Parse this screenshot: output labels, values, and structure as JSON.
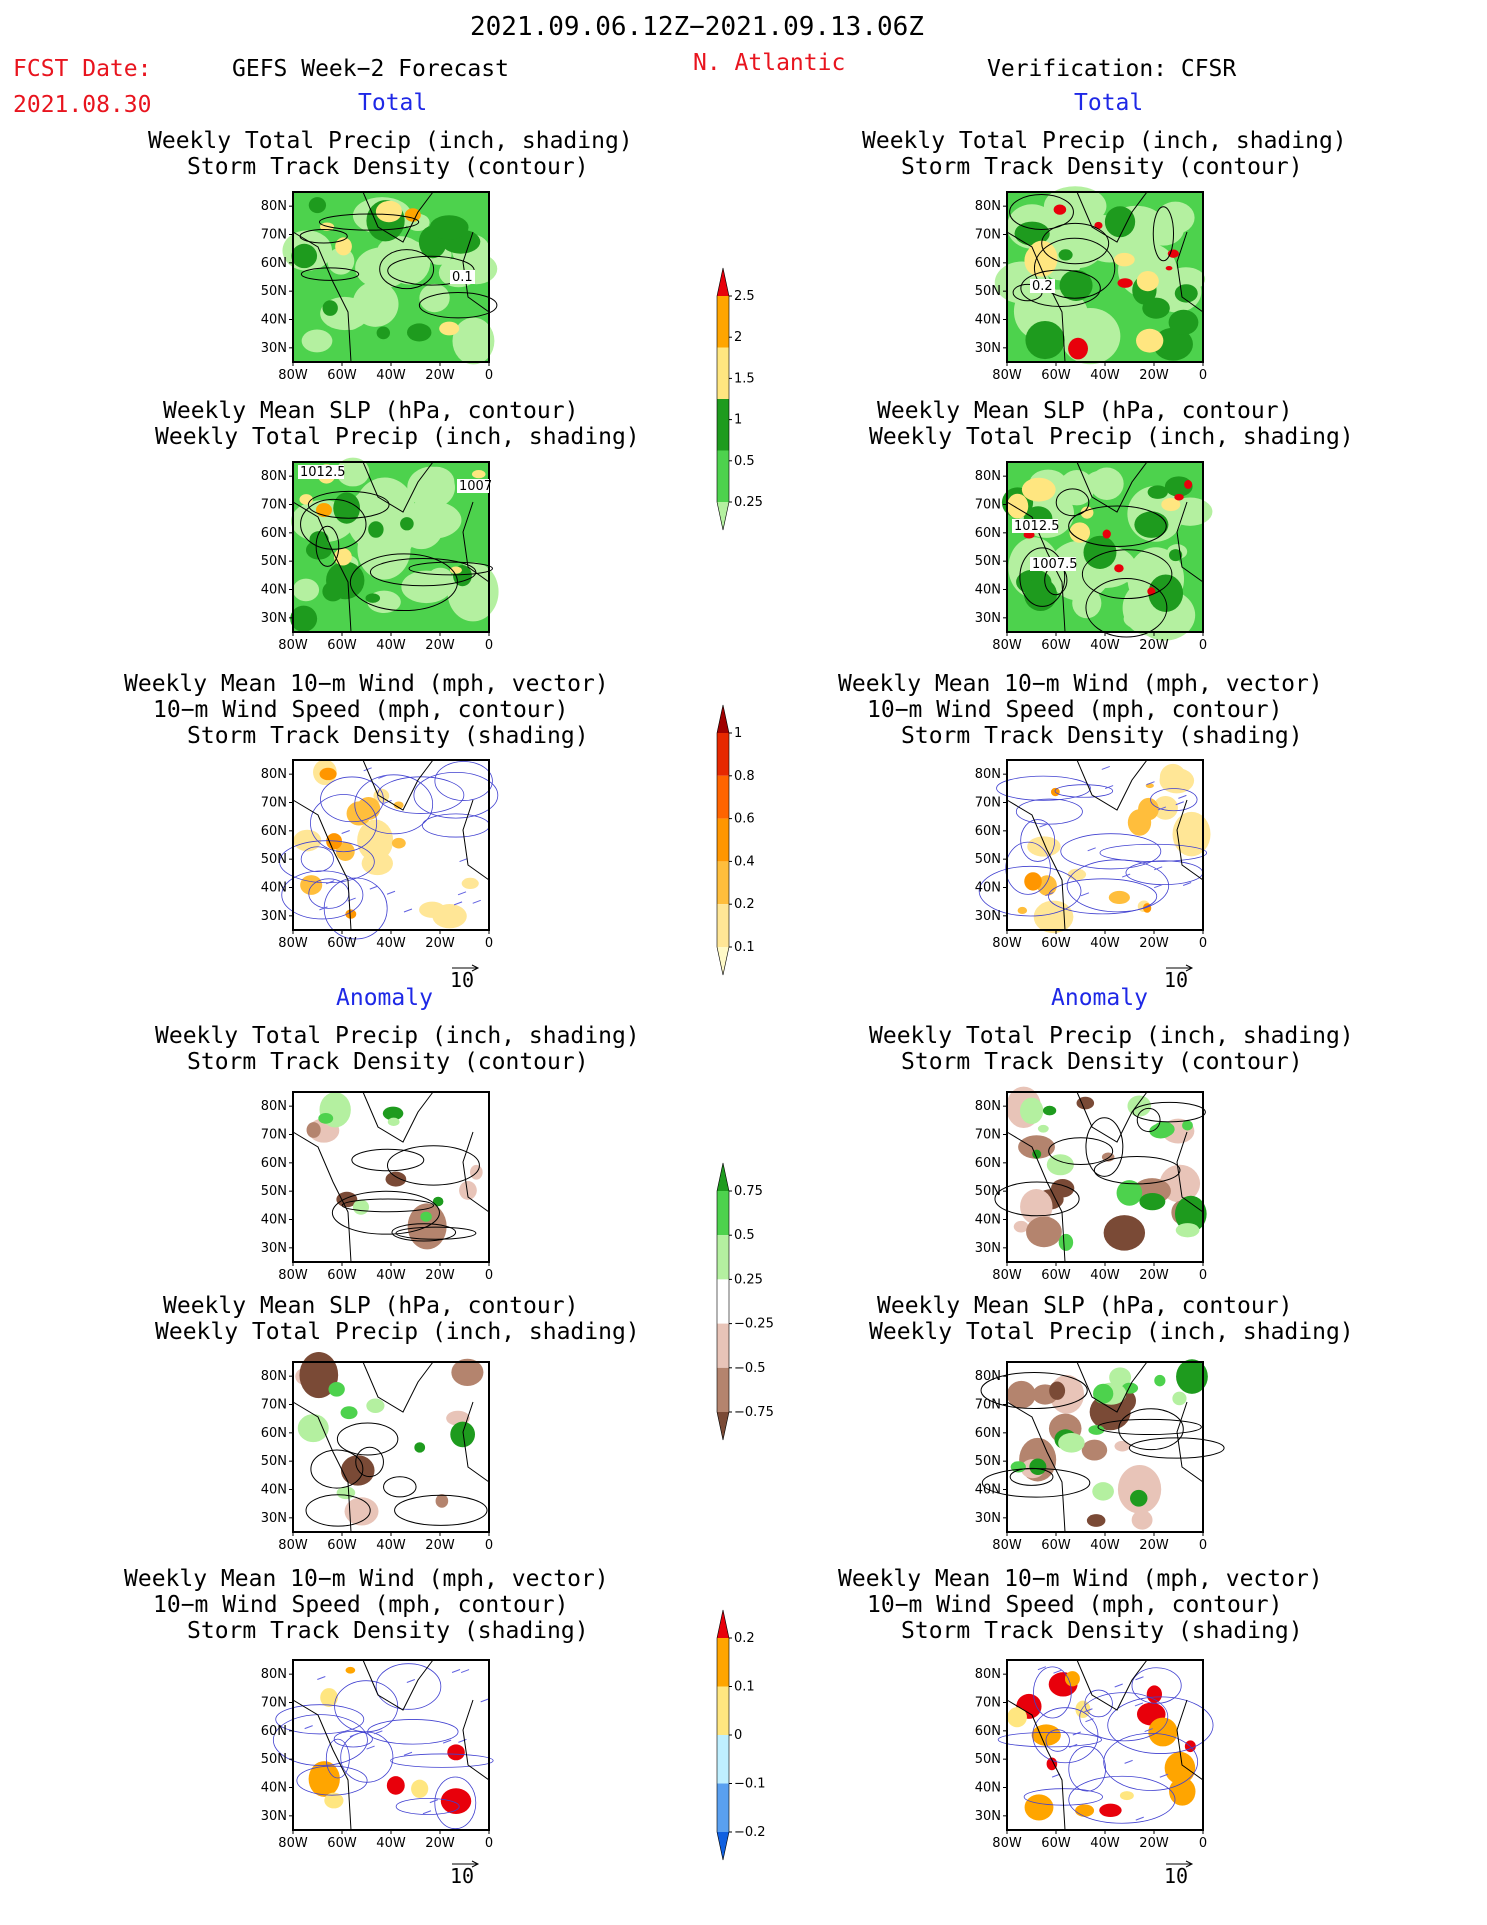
{
  "header": {
    "period": "2021.09.06.12Z−2021.09.13.06Z",
    "fcst_label": "FCST Date:",
    "fcst_date": "2021.08.30",
    "region": "N. Atlantic",
    "left_title": "GEFS Week−2 Forecast",
    "right_title": "Verification: CFSR"
  },
  "sections": {
    "total": "Total",
    "anomaly": "Anomaly"
  },
  "panel_titles": {
    "precip_storm": [
      "Weekly Total Precip (inch, shading)",
      "Storm Track Density (contour)"
    ],
    "slp_precip": [
      "Weekly Mean SLP (hPa, contour)",
      "Weekly Total Precip (inch, shading)"
    ],
    "wind": [
      "Weekly Mean 10−m Wind (mph, vector)",
      "10−m Wind Speed (mph, contour)",
      "Storm Track Density (shading)"
    ]
  },
  "axes": {
    "lat_ticks": [
      "80N",
      "70N",
      "60N",
      "50N",
      "40N",
      "30N"
    ],
    "lon_ticks": [
      "80W",
      "60W",
      "40W",
      "20W",
      "0"
    ]
  },
  "vector_ref": "10",
  "contour_labels": {
    "fc_total_storm": [
      "0.1"
    ],
    "obs_total_storm": [
      "0.2"
    ],
    "fc_total_slp": [
      "1012.5",
      "1007"
    ],
    "obs_total_slp": [
      "1012.5",
      "1007.5"
    ]
  },
  "colorbars": [
    {
      "name": "total-precip",
      "labels": [
        "2.5",
        "2",
        "1.5",
        "1",
        "0.5",
        "0.25"
      ],
      "colors": [
        "#e8000b",
        "#ffa500",
        "#ffe680",
        "#1e9b1e",
        "#4dd24d",
        "#b4f0a0"
      ]
    },
    {
      "name": "total-storm-density",
      "labels": [
        "1",
        "0.8",
        "0.6",
        "0.4",
        "0.2",
        "0.1"
      ],
      "colors": [
        "#a00000",
        "#e62800",
        "#ff6400",
        "#ff9600",
        "#ffbe3c",
        "#ffe696",
        "#fffac8"
      ]
    },
    {
      "name": "anomaly-precip",
      "labels": [
        "0.75",
        "0.5",
        "0.25",
        "−0.25",
        "−0.5",
        "−0.75"
      ],
      "colors": [
        "#1e9b1e",
        "#4dd24d",
        "#b4f0a0",
        "#ffffff",
        "#e8c4b8",
        "#b4846e",
        "#7a4a36"
      ]
    },
    {
      "name": "anomaly-storm-density",
      "labels": [
        "0.2",
        "0.1",
        "0",
        "−0.1",
        "−0.2"
      ],
      "colors": [
        "#e8000b",
        "#ffa500",
        "#ffe680",
        "#bfefff",
        "#5aa0f0",
        "#1060e0"
      ]
    }
  ],
  "chart_data": [
    {
      "type": "heatmap",
      "panel": "forecast-total-precip-storm-track",
      "title": [
        "Weekly Total Precip (inch, shading)",
        "Storm Track Density (contour)"
      ],
      "xlim": [
        -80,
        0
      ],
      "ylim": [
        25,
        85
      ],
      "xticks": [
        "80W",
        "60W",
        "40W",
        "20W",
        "0"
      ],
      "yticks": [
        "80N",
        "70N",
        "60N",
        "50N",
        "40N",
        "30N"
      ]
    },
    {
      "type": "heatmap",
      "panel": "verification-total-precip-storm-track",
      "title": [
        "Weekly Total Precip (inch, shading)",
        "Storm Track Density (contour)"
      ],
      "xlim": [
        -80,
        0
      ],
      "ylim": [
        25,
        85
      ]
    },
    {
      "type": "heatmap",
      "panel": "forecast-total-slp-precip",
      "title": [
        "Weekly Mean SLP (hPa, contour)",
        "Weekly Total Precip (inch, shading)"
      ],
      "xlim": [
        -80,
        0
      ],
      "ylim": [
        25,
        85
      ]
    },
    {
      "type": "heatmap",
      "panel": "verification-total-slp-precip",
      "title": [
        "Weekly Mean SLP (hPa, contour)",
        "Weekly Total Precip (inch, shading)"
      ],
      "xlim": [
        -80,
        0
      ],
      "ylim": [
        25,
        85
      ]
    },
    {
      "type": "heatmap",
      "panel": "forecast-total-wind",
      "title": [
        "Weekly Mean 10−m Wind (mph, vector)",
        "10−m Wind Speed (mph, contour)",
        "Storm Track Density (shading)"
      ],
      "xlim": [
        -80,
        0
      ],
      "ylim": [
        25,
        85
      ]
    },
    {
      "type": "heatmap",
      "panel": "verification-total-wind",
      "xlim": [
        -80,
        0
      ],
      "ylim": [
        25,
        85
      ]
    },
    {
      "type": "heatmap",
      "panel": "forecast-anomaly-precip-storm-track",
      "xlim": [
        -80,
        0
      ],
      "ylim": [
        25,
        85
      ]
    },
    {
      "type": "heatmap",
      "panel": "verification-anomaly-precip-storm-track",
      "xlim": [
        -80,
        0
      ],
      "ylim": [
        25,
        85
      ]
    },
    {
      "type": "heatmap",
      "panel": "forecast-anomaly-slp-precip",
      "xlim": [
        -80,
        0
      ],
      "ylim": [
        25,
        85
      ]
    },
    {
      "type": "heatmap",
      "panel": "verification-anomaly-slp-precip",
      "xlim": [
        -80,
        0
      ],
      "ylim": [
        25,
        85
      ]
    },
    {
      "type": "heatmap",
      "panel": "forecast-anomaly-wind",
      "xlim": [
        -80,
        0
      ],
      "ylim": [
        25,
        85
      ]
    },
    {
      "type": "heatmap",
      "panel": "verification-anomaly-wind",
      "xlim": [
        -80,
        0
      ],
      "ylim": [
        25,
        85
      ]
    }
  ]
}
